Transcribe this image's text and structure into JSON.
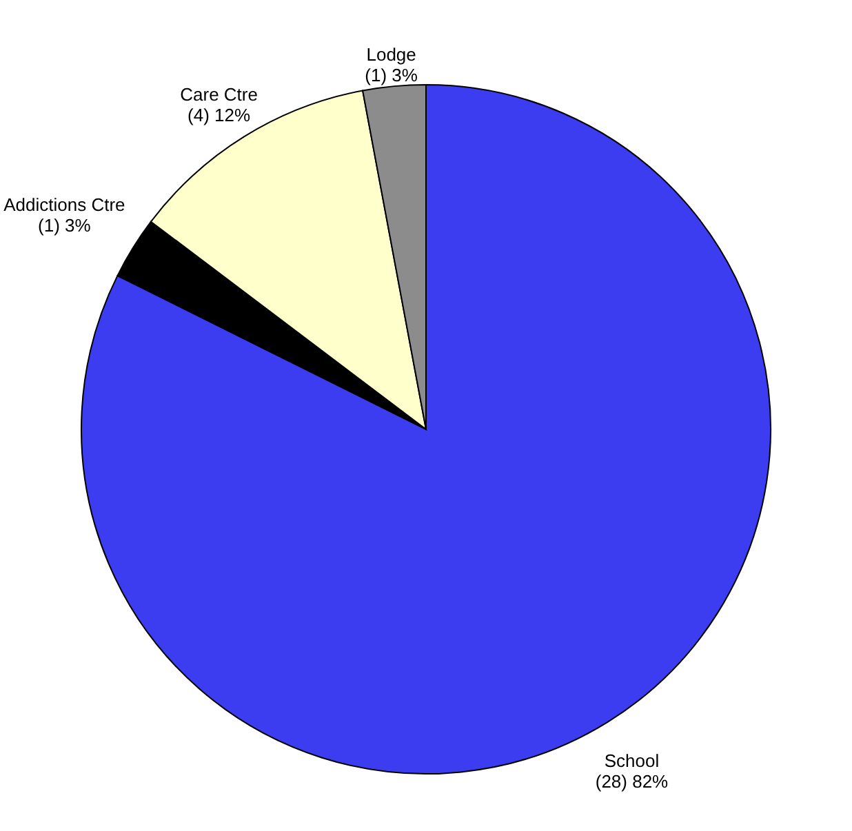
{
  "chart_data": {
    "type": "pie",
    "categories": [
      "School",
      "Addictions Ctre",
      "Care Ctre",
      "Lodge"
    ],
    "values": [
      28,
      1,
      4,
      1
    ],
    "value_labels": [
      "(28) 82%",
      "(1) 3%",
      "(4) 12%",
      "(1) 3%"
    ],
    "colors": [
      "#3c3cf0",
      "#000000",
      "#ffffcc",
      "#8c8c8c"
    ]
  }
}
